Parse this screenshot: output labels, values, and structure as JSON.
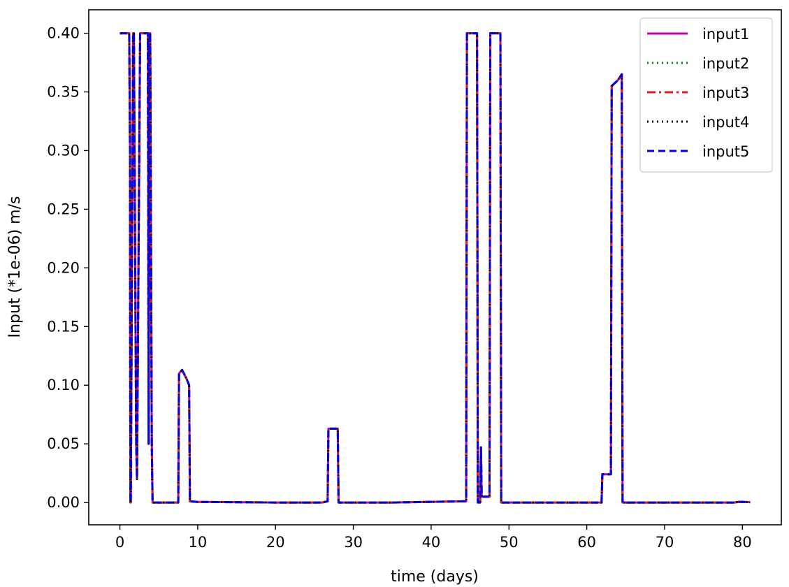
{
  "chart_data": {
    "type": "line",
    "title": "",
    "xlabel": "time (days)",
    "ylabel": "Input (*1e-06) m/s",
    "xlim": [
      -4,
      85
    ],
    "ylim": [
      -0.019,
      0.42
    ],
    "xticks": [
      "0",
      "10",
      "20",
      "30",
      "40",
      "50",
      "60",
      "70",
      "80"
    ],
    "yticks": [
      "0.00",
      "0.05",
      "0.10",
      "0.15",
      "0.20",
      "0.25",
      "0.30",
      "0.35",
      "0.40"
    ],
    "grid": false,
    "legend_position": "top-right",
    "x": [
      0,
      1.2,
      1.3,
      1.35,
      1.4,
      1.7,
      1.8,
      2.1,
      2.2,
      2.6,
      2.7,
      3.3,
      3.4,
      3.6,
      3.7,
      3.8,
      3.9,
      4.1,
      4.2,
      4.4,
      7.5,
      7.6,
      8.0,
      8.6,
      8.9,
      9.0,
      10,
      20,
      26,
      26.7,
      26.8,
      27.5,
      28.0,
      28.1,
      35,
      44.0,
      44.5,
      44.6,
      45.9,
      46.0,
      46.3,
      46.4,
      46.5,
      46.6,
      47.5,
      47.6,
      47.7,
      48.6,
      48.9,
      49.0,
      55,
      61.9,
      62.0,
      63.1,
      63.2,
      64.0,
      64.5,
      64.6,
      70,
      79,
      79.5,
      80,
      81
    ],
    "series": [
      {
        "name": "input1",
        "color": "#bf00bf",
        "style": "solid",
        "values": [
          0.4,
          0.4,
          0.3,
          0.0,
          0.0,
          0.4,
          0.4,
          0.05,
          0.02,
          0.4,
          0.4,
          0.4,
          0.4,
          0.4,
          0.05,
          0.4,
          0.4,
          0.05,
          0.0,
          0.0,
          0.0,
          0.11,
          0.113,
          0.105,
          0.1,
          0.001,
          0.0005,
          0.0,
          0.0,
          0.001,
          0.063,
          0.063,
          0.063,
          0.0,
          0.0,
          0.001,
          0.001,
          0.4,
          0.4,
          0.0,
          0.0,
          0.047,
          0.005,
          0.005,
          0.005,
          0.4,
          0.4,
          0.4,
          0.4,
          0.0,
          0.0,
          0.0,
          0.024,
          0.024,
          0.355,
          0.36,
          0.365,
          0.0,
          0.0,
          0.0,
          0.0005,
          0.0005,
          0.0003
        ]
      },
      {
        "name": "input2",
        "color": "#008000",
        "style": "dotted",
        "values": [
          0.4,
          0.4,
          0.3,
          0.0,
          0.0,
          0.4,
          0.4,
          0.05,
          0.02,
          0.4,
          0.4,
          0.4,
          0.4,
          0.4,
          0.05,
          0.4,
          0.4,
          0.05,
          0.0,
          0.0,
          0.0,
          0.11,
          0.113,
          0.105,
          0.1,
          0.001,
          0.0005,
          0.0,
          0.0,
          0.001,
          0.063,
          0.063,
          0.063,
          0.0,
          0.0,
          0.001,
          0.001,
          0.4,
          0.4,
          0.0,
          0.0,
          0.047,
          0.005,
          0.005,
          0.005,
          0.4,
          0.4,
          0.4,
          0.4,
          0.0,
          0.0,
          0.0,
          0.024,
          0.024,
          0.355,
          0.36,
          0.365,
          0.0,
          0.0,
          0.0,
          0.0005,
          0.0005,
          0.0003
        ]
      },
      {
        "name": "input3",
        "color": "#e31a1c",
        "style": "dashdot",
        "values": [
          0.4,
          0.4,
          0.3,
          0.0,
          0.0,
          0.4,
          0.4,
          0.05,
          0.02,
          0.4,
          0.4,
          0.4,
          0.4,
          0.4,
          0.05,
          0.4,
          0.4,
          0.05,
          0.0,
          0.0,
          0.0,
          0.11,
          0.113,
          0.105,
          0.1,
          0.001,
          0.0005,
          0.0,
          0.0,
          0.001,
          0.063,
          0.063,
          0.063,
          0.0,
          0.0,
          0.001,
          0.001,
          0.4,
          0.4,
          0.0,
          0.0,
          0.047,
          0.005,
          0.005,
          0.005,
          0.4,
          0.4,
          0.4,
          0.4,
          0.0,
          0.0,
          0.0,
          0.024,
          0.024,
          0.355,
          0.36,
          0.365,
          0.0,
          0.0,
          0.0,
          0.0005,
          0.0005,
          0.0003
        ]
      },
      {
        "name": "input4",
        "color": "#000000",
        "style": "dotted",
        "values": [
          0.4,
          0.4,
          0.3,
          0.0,
          0.0,
          0.4,
          0.4,
          0.05,
          0.02,
          0.4,
          0.4,
          0.4,
          0.4,
          0.4,
          0.05,
          0.4,
          0.4,
          0.05,
          0.0,
          0.0,
          0.0,
          0.11,
          0.113,
          0.105,
          0.1,
          0.001,
          0.0005,
          0.0,
          0.0,
          0.001,
          0.063,
          0.063,
          0.063,
          0.0,
          0.0,
          0.001,
          0.001,
          0.4,
          0.4,
          0.0,
          0.0,
          0.047,
          0.005,
          0.005,
          0.005,
          0.4,
          0.4,
          0.4,
          0.4,
          0.0,
          0.0,
          0.0,
          0.024,
          0.024,
          0.355,
          0.36,
          0.365,
          0.0,
          0.0,
          0.0,
          0.0005,
          0.0005,
          0.0003
        ]
      },
      {
        "name": "input5",
        "color": "#0000e0",
        "style": "dashed",
        "values": [
          0.4,
          0.4,
          0.3,
          0.0,
          0.0,
          0.4,
          0.4,
          0.05,
          0.02,
          0.4,
          0.4,
          0.4,
          0.4,
          0.4,
          0.05,
          0.4,
          0.4,
          0.05,
          0.0,
          0.0,
          0.0,
          0.11,
          0.113,
          0.105,
          0.1,
          0.001,
          0.0005,
          0.0,
          0.0,
          0.001,
          0.063,
          0.063,
          0.063,
          0.0,
          0.0,
          0.001,
          0.001,
          0.4,
          0.4,
          0.0,
          0.0,
          0.047,
          0.005,
          0.005,
          0.005,
          0.4,
          0.4,
          0.4,
          0.4,
          0.0,
          0.0,
          0.0,
          0.024,
          0.024,
          0.355,
          0.36,
          0.365,
          0.0,
          0.0,
          0.0,
          0.0005,
          0.0005,
          0.0003
        ]
      }
    ]
  }
}
